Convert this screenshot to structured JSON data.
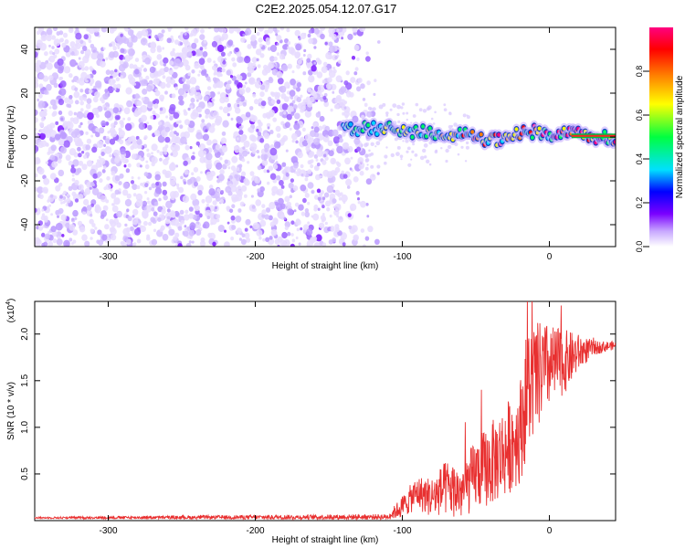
{
  "title": "C2E2.2025.054.12.07.G17",
  "chart_data": [
    {
      "type": "heatmap",
      "title": "C2E2.2025.054.12.07.G17",
      "xlabel": "Height of straight line (km)",
      "ylabel": "Frequency (Hz)",
      "xlim": [
        -350,
        45
      ],
      "ylim": [
        -50,
        50
      ],
      "xticks": [
        -300,
        -200,
        -100,
        0
      ],
      "yticks": [
        -40,
        -20,
        0,
        20,
        40
      ],
      "grid": false,
      "colorbar": {
        "label": "Normalized spectral amplitude",
        "range": [
          0,
          1
        ],
        "ticks": [
          0.0,
          0.2,
          0.4,
          0.6,
          0.8
        ],
        "colormap": [
          "#ffffff",
          "#c8a8ff",
          "#7a00ff",
          "#0000ff",
          "#00e0ff",
          "#00ff40",
          "#ffff00",
          "#ff8000",
          "#ff0000",
          "#ff0080"
        ]
      },
      "noise_region_km": [
        -350,
        -120
      ],
      "ridge": [
        {
          "x": -140,
          "y": 3
        },
        {
          "x": -120,
          "y": 4
        },
        {
          "x": -100,
          "y": 3
        },
        {
          "x": -80,
          "y": 2
        },
        {
          "x": -60,
          "y": 1
        },
        {
          "x": -40,
          "y": -2
        },
        {
          "x": -25,
          "y": 0
        },
        {
          "x": -15,
          "y": 3
        },
        {
          "x": 0,
          "y": 1
        },
        {
          "x": 15,
          "y": 1
        },
        {
          "x": 45,
          "y": 0
        }
      ]
    },
    {
      "type": "line",
      "xlabel": "Height of straight line (km)",
      "ylabel": "SNR (10 * v/v)",
      "y_multiplier": "(x10",
      "y_multiplier_exp": "4",
      "y_multiplier_close": ")",
      "xlim": [
        -350,
        45
      ],
      "ylim": [
        0,
        2.35
      ],
      "xticks": [
        -300,
        -200,
        -100,
        0
      ],
      "yticks": [
        0.5,
        1.0,
        1.5,
        2.0
      ],
      "ytick_labels": [
        "0.5",
        "1.0",
        "1.5",
        "2.0"
      ],
      "grid": false,
      "color": "#e83030",
      "series": [
        {
          "x": [
            -350,
            -110,
            -100,
            -90,
            -80,
            -70,
            -60,
            -50,
            -40,
            -30,
            -20,
            -15,
            -10,
            -5,
            0,
            10,
            20,
            30,
            45
          ],
          "y": [
            0.03,
            0.04,
            0.15,
            0.3,
            0.25,
            0.35,
            0.3,
            0.5,
            0.6,
            0.75,
            0.95,
            1.4,
            1.5,
            1.6,
            1.65,
            1.7,
            1.8,
            1.85,
            1.88
          ],
          "noise_amplitude": [
            0.01,
            0.03,
            0.12,
            0.18,
            0.22,
            0.3,
            0.3,
            0.38,
            0.45,
            0.5,
            0.55,
            0.7,
            0.6,
            0.55,
            0.45,
            0.35,
            0.2,
            0.08,
            0.04
          ]
        }
      ]
    }
  ]
}
